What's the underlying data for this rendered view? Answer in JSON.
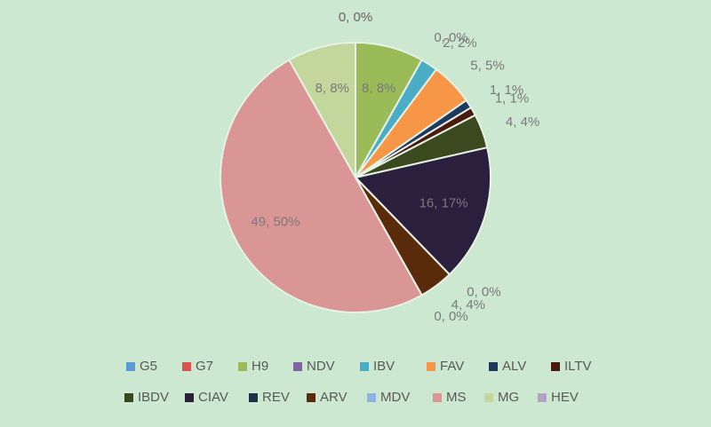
{
  "chart_data": {
    "type": "pie",
    "categories": [
      "G5",
      "G7",
      "H9",
      "NDV",
      "IBV",
      "FAV",
      "ALV",
      "ILTV",
      "IBDV",
      "CIAV",
      "REV",
      "ARV",
      "MDV",
      "MS",
      "MG",
      "HEV"
    ],
    "values": [
      0,
      0,
      8,
      0,
      2,
      5,
      1,
      1,
      4,
      16,
      0,
      4,
      0,
      49,
      8,
      0
    ],
    "value_labels": [
      "0, 0%",
      "0, 0%",
      "8, 8%",
      "0, 0%",
      "2, 2%",
      "5, 5%",
      "1, 1%",
      "1, 1%",
      "4, 4%",
      "16, 17%",
      "0, 0%",
      "4, 4%",
      "0, 0%",
      "49, 50%",
      "8, 8%",
      "0, 0%"
    ],
    "colors": [
      "#5b9bd5",
      "#d9534f",
      "#9bbb59",
      "#8064a2",
      "#4bacc6",
      "#f79646",
      "#1f3a5f",
      "#4b1a0f",
      "#3b4a1e",
      "#2a1f3d",
      "#1a3347",
      "#5a2b0a",
      "#8eb4e3",
      "#d99694",
      "#c3d69b",
      "#b3a2c7"
    ],
    "legend": "bottom"
  }
}
